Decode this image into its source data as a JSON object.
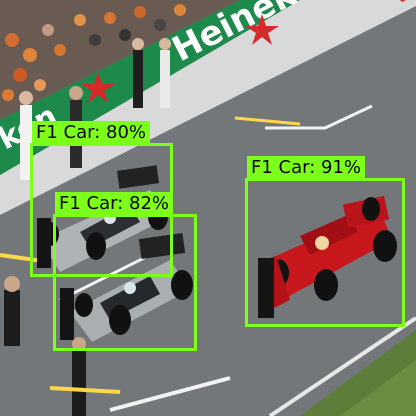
{
  "colors": {
    "box": "#7cff1a",
    "label_text": "#000000",
    "ferrari_red": "#c8161d",
    "mercedes_silver": "#aeb3b6",
    "banner_green": "#1f8a4c"
  },
  "detections": [
    {
      "label": "F1 Car: 91%",
      "class": "F1 Car",
      "confidence": 0.91
    },
    {
      "label": "F1 Car: 80%",
      "class": "F1 Car",
      "confidence": 0.8
    },
    {
      "label": "F1 Car: 82%",
      "class": "F1 Car",
      "confidence": 0.82
    }
  ],
  "banner": {
    "text": "Heineken"
  }
}
